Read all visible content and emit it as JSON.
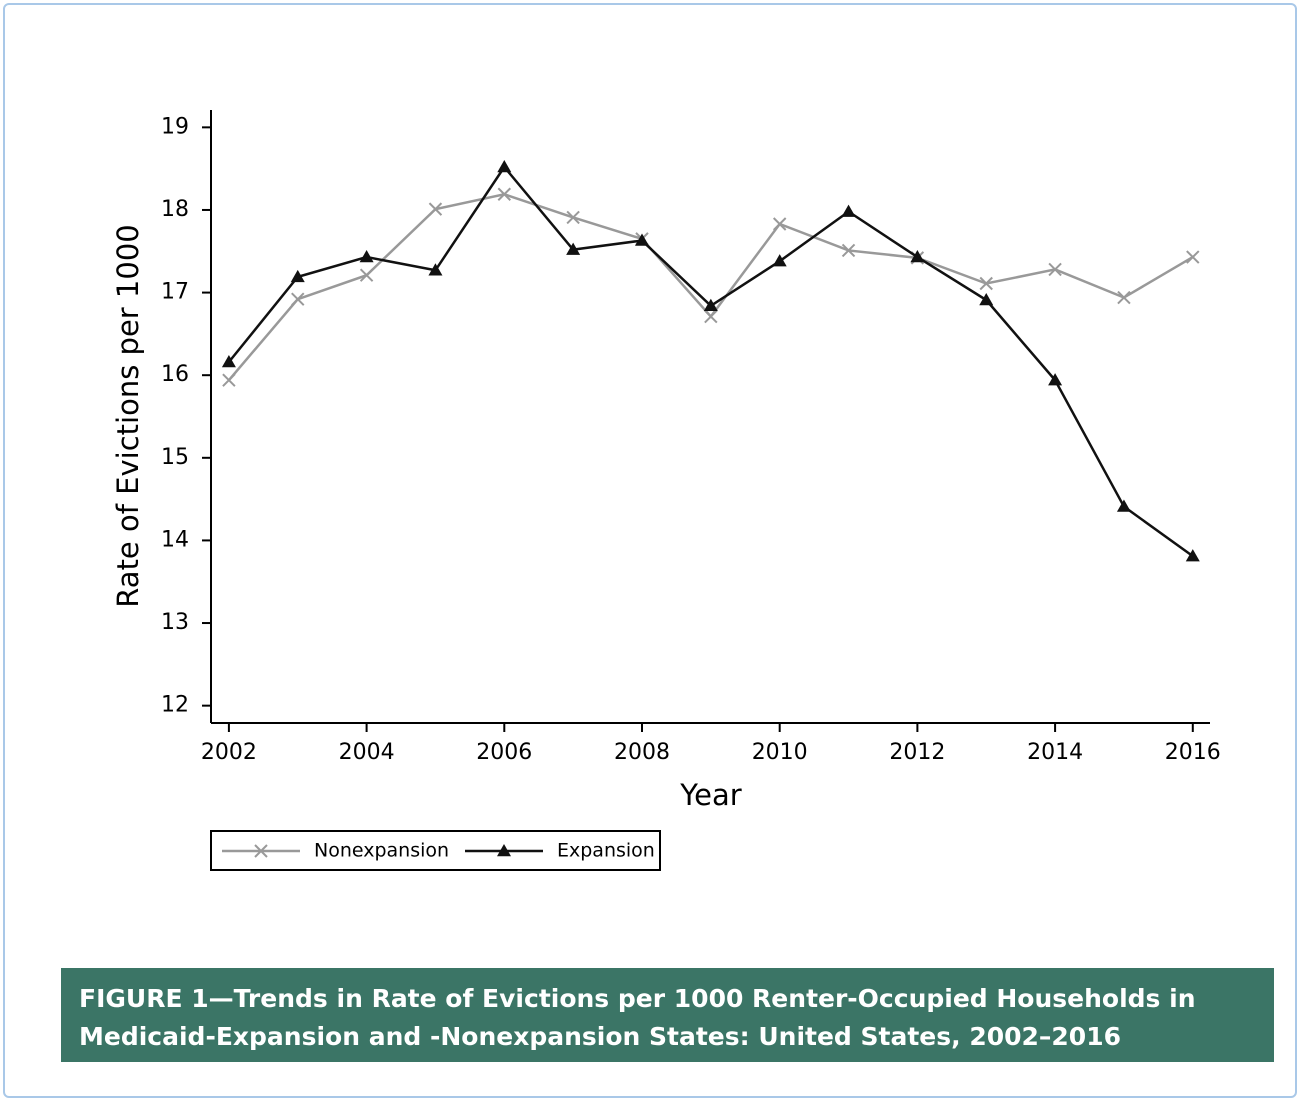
{
  "chart_data": {
    "type": "line",
    "y_label": "Rate of Evictions per 1000",
    "x_label": "Year",
    "x": [
      2002,
      2003,
      2004,
      2005,
      2006,
      2007,
      2008,
      2009,
      2010,
      2011,
      2012,
      2013,
      2014,
      2015,
      2016
    ],
    "series": [
      {
        "name": "Nonexpansion",
        "color": "#999999",
        "marker": "x",
        "values": [
          15.94,
          16.92,
          17.21,
          18.01,
          18.19,
          17.91,
          17.65,
          16.71,
          17.83,
          17.51,
          17.42,
          17.11,
          17.28,
          16.94,
          17.43
        ]
      },
      {
        "name": "Expansion",
        "color": "#111111",
        "marker": "triangle",
        "values": [
          16.16,
          17.19,
          17.43,
          17.27,
          18.52,
          17.52,
          17.63,
          16.84,
          17.38,
          17.98,
          17.43,
          16.91,
          15.94,
          14.41,
          13.81
        ]
      }
    ],
    "xlim": [
      2001.74,
      2016.25
    ],
    "ylim": [
      11.79,
      19.21
    ],
    "xticks": [
      2002,
      2004,
      2006,
      2008,
      2010,
      2012,
      2014,
      2016
    ],
    "yticks": [
      12,
      13,
      14,
      15,
      16,
      17,
      18,
      19
    ],
    "grid": false,
    "caption": "FIGURE 1—Trends in Rate of Evictions per 1000 Renter-Occupied Households in Medicaid-Expansion and -Nonexpansion States: United States, 2002–2016"
  }
}
